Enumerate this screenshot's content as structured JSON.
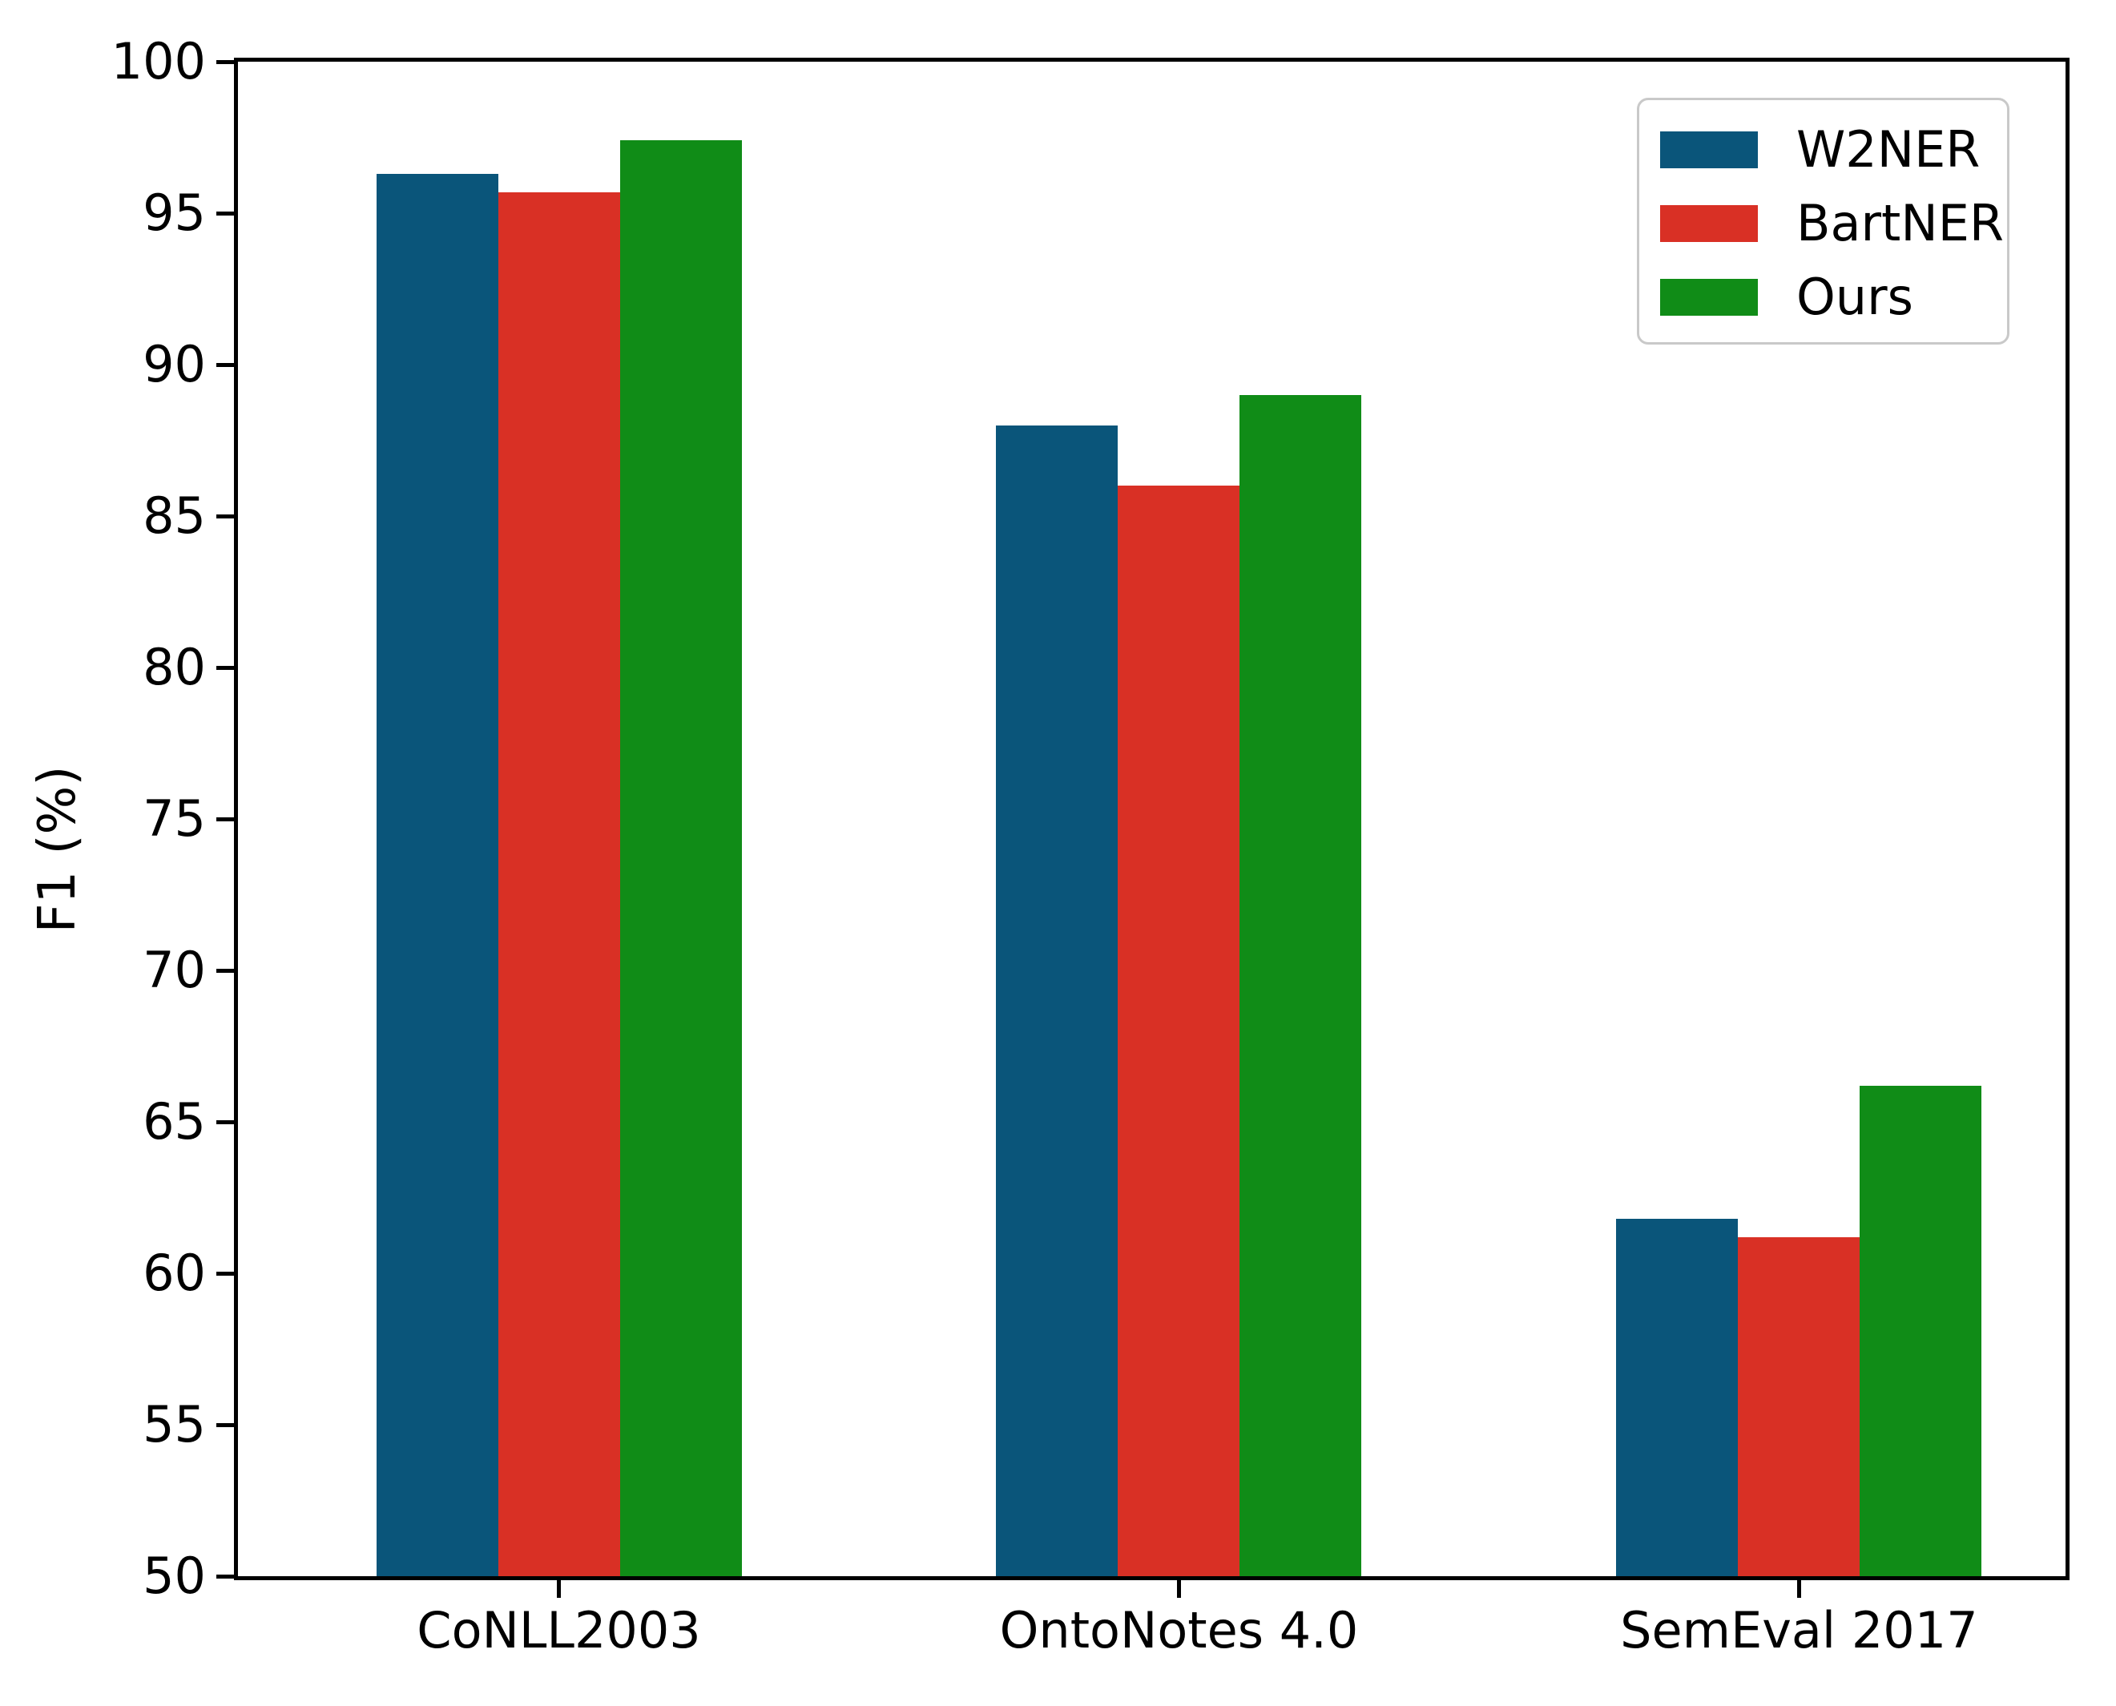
{
  "chart_data": {
    "type": "bar",
    "title": "",
    "xlabel": "",
    "ylabel": "F1 (%)",
    "categories": [
      "CoNLL2003",
      "OntoNotes 4.0",
      "SemEval 2017"
    ],
    "series": [
      {
        "name": "W2NER",
        "color": "#0a557a",
        "values": [
          96.3,
          88.0,
          61.8
        ]
      },
      {
        "name": "BartNER",
        "color": "#d93025",
        "values": [
          95.7,
          86.0,
          61.2
        ]
      },
      {
        "name": "Ours",
        "color": "#108c17",
        "values": [
          97.4,
          89.0,
          66.2
        ]
      }
    ],
    "ylim": [
      50,
      100
    ],
    "yticks": [
      50,
      55,
      60,
      65,
      70,
      75,
      80,
      85,
      90,
      95,
      100
    ],
    "grid": false,
    "legend_position": "upper right",
    "axis_color": "#000000",
    "background_color": "#ffffff"
  }
}
